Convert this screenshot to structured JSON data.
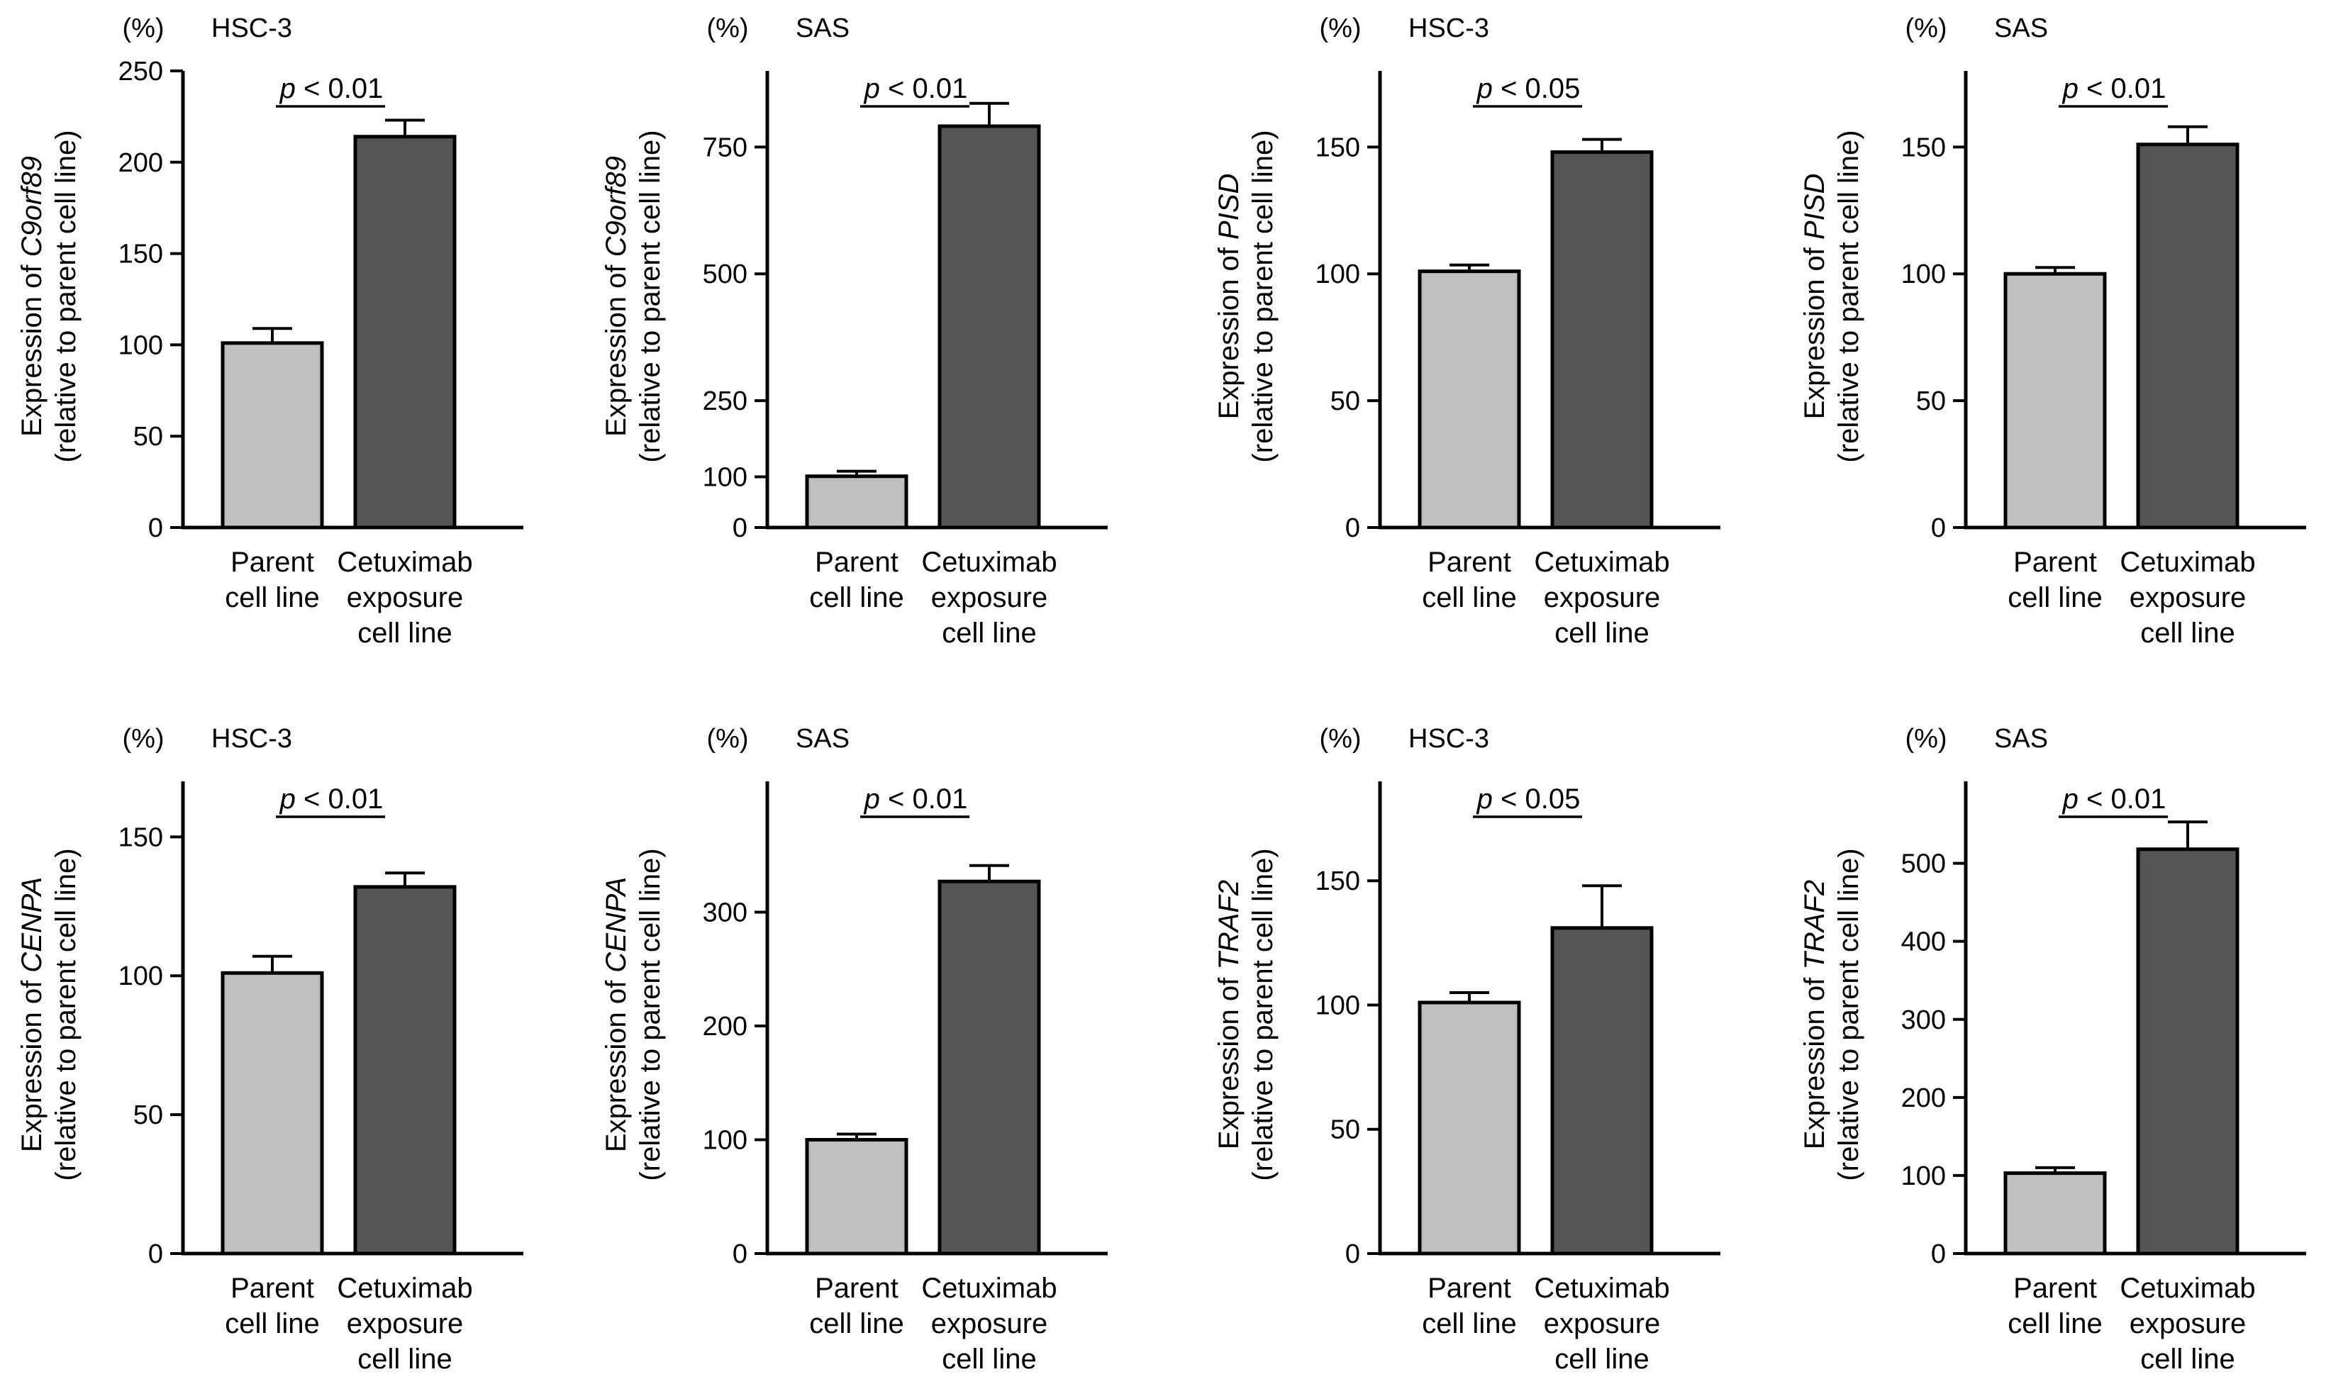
{
  "colors": {
    "parent": "#c0c0c0",
    "exposure": "#555555",
    "stroke": "#000000"
  },
  "chart_data": [
    {
      "type": "bar",
      "cell_line": "HSC-3",
      "unit": "(%)",
      "gene": "C9orf89",
      "ylabel_prefix": "Expression of ",
      "ylabel_sub": "(relative to parent cell line)",
      "categories": [
        [
          "Parent",
          "cell line"
        ],
        [
          "Cetuximab",
          "exposure",
          "cell line"
        ]
      ],
      "values": [
        101,
        214
      ],
      "errors": [
        8,
        9
      ],
      "ylim": [
        0,
        250
      ],
      "ticks": [
        0,
        50,
        100,
        150,
        200,
        250
      ],
      "pvalue_symbol": "p",
      "pvalue_rest": " < 0.01"
    },
    {
      "type": "bar",
      "cell_line": "SAS",
      "unit": "(%)",
      "gene": "C9orf89",
      "ylabel_prefix": "Expression of ",
      "ylabel_sub": "(relative to parent cell line)",
      "categories": [
        [
          "Parent",
          "cell line"
        ],
        [
          "Cetuximab",
          "exposure",
          "cell line"
        ]
      ],
      "values": [
        101,
        791
      ],
      "errors": [
        10,
        45
      ],
      "ylim": [
        0,
        900
      ],
      "ticks": [
        0,
        100,
        250,
        500,
        750
      ],
      "pvalue_symbol": "p",
      "pvalue_rest": " < 0.01"
    },
    {
      "type": "bar",
      "cell_line": "HSC-3",
      "unit": "(%)",
      "gene": "PISD",
      "ylabel_prefix": "Expression of ",
      "ylabel_sub": "(relative to parent cell line)",
      "categories": [
        [
          "Parent",
          "cell line"
        ],
        [
          "Cetuximab",
          "exposure",
          "cell line"
        ]
      ],
      "values": [
        101,
        148
      ],
      "errors": [
        2.5,
        5
      ],
      "ylim": [
        0,
        180
      ],
      "ticks": [
        0,
        50,
        100,
        150
      ],
      "pvalue_symbol": "p",
      "pvalue_rest": " < 0.05"
    },
    {
      "type": "bar",
      "cell_line": "SAS",
      "unit": "(%)",
      "gene": "PISD",
      "ylabel_prefix": "Expression of ",
      "ylabel_sub": "(relative to parent cell line)",
      "categories": [
        [
          "Parent",
          "cell line"
        ],
        [
          "Cetuximab",
          "exposure",
          "cell line"
        ]
      ],
      "values": [
        100,
        151
      ],
      "errors": [
        2.5,
        7
      ],
      "ylim": [
        0,
        180
      ],
      "ticks": [
        0,
        50,
        100,
        150
      ],
      "pvalue_symbol": "p",
      "pvalue_rest": " < 0.01"
    },
    {
      "type": "bar",
      "cell_line": "HSC-3",
      "unit": "(%)",
      "gene": "CENPA",
      "ylabel_prefix": "Expression of ",
      "ylabel_sub": "(relative to parent cell line)",
      "categories": [
        [
          "Parent",
          "cell line"
        ],
        [
          "Cetuximab",
          "exposure",
          "cell line"
        ]
      ],
      "values": [
        101,
        132
      ],
      "errors": [
        6,
        5
      ],
      "ylim": [
        0,
        170
      ],
      "ticks": [
        0,
        50,
        100,
        150
      ],
      "pvalue_symbol": "p",
      "pvalue_rest": " < 0.01"
    },
    {
      "type": "bar",
      "cell_line": "SAS",
      "unit": "(%)",
      "gene": "CENPA",
      "ylabel_prefix": "Expression of ",
      "ylabel_sub": "(relative to parent cell line)",
      "categories": [
        [
          "Parent",
          "cell line"
        ],
        [
          "Cetuximab",
          "exposure",
          "cell line"
        ]
      ],
      "values": [
        100,
        327
      ],
      "errors": [
        5,
        14
      ],
      "ylim": [
        0,
        415
      ],
      "ticks": [
        0,
        100,
        200,
        300
      ],
      "pvalue_symbol": "p",
      "pvalue_rest": " < 0.01"
    },
    {
      "type": "bar",
      "cell_line": "HSC-3",
      "unit": "(%)",
      "gene": "TRAF2",
      "ylabel_prefix": "Expression of ",
      "ylabel_sub": "(relative to parent cell line)",
      "categories": [
        [
          "Parent",
          "cell line"
        ],
        [
          "Cetuximab",
          "exposure",
          "cell line"
        ]
      ],
      "values": [
        101,
        131
      ],
      "errors": [
        4,
        17
      ],
      "ylim": [
        0,
        190
      ],
      "ticks": [
        0,
        50,
        100,
        150
      ],
      "pvalue_symbol": "p",
      "pvalue_rest": " < 0.05"
    },
    {
      "type": "bar",
      "cell_line": "SAS",
      "unit": "(%)",
      "gene": "TRAF2",
      "ylabel_prefix": "Expression of ",
      "ylabel_sub": "(relative to parent cell line)",
      "categories": [
        [
          "Parent",
          "cell line"
        ],
        [
          "Cetuximab",
          "exposure",
          "cell line"
        ]
      ],
      "values": [
        103,
        518
      ],
      "errors": [
        7,
        35
      ],
      "ylim": [
        0,
        605
      ],
      "ticks": [
        0,
        100,
        200,
        300,
        400,
        500
      ],
      "pvalue_symbol": "p",
      "pvalue_rest": " < 0.01"
    }
  ]
}
